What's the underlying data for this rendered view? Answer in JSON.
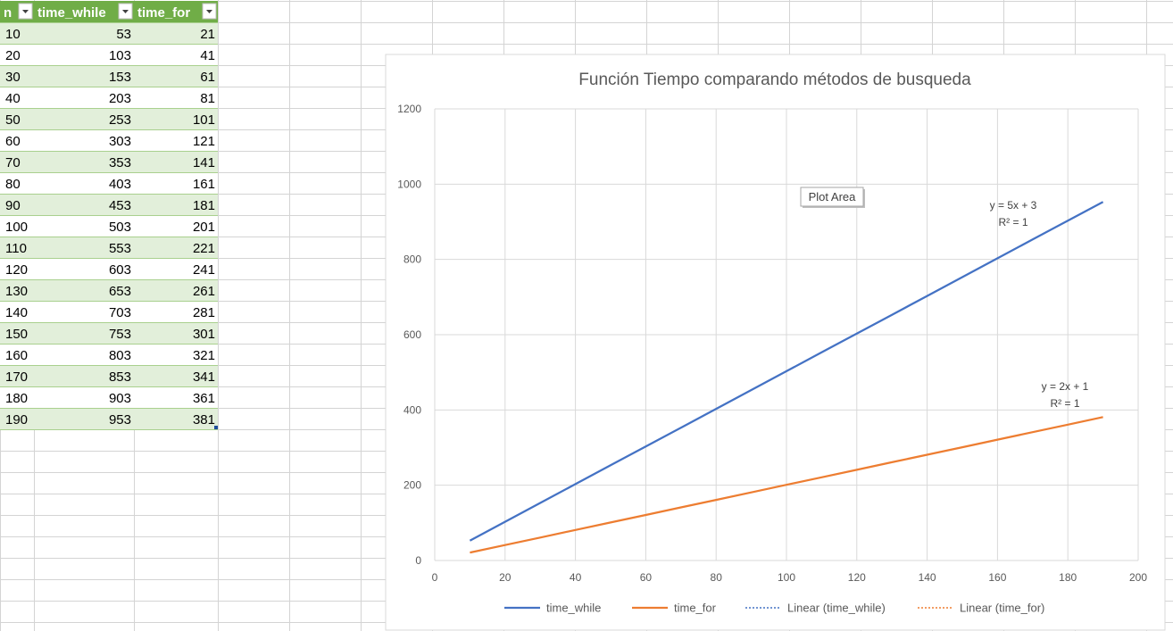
{
  "table": {
    "headers": [
      "n",
      "time_while",
      "time_for"
    ],
    "header_color": "#70ad47",
    "band_color": "#e2efda",
    "rows": [
      [
        10,
        53,
        21
      ],
      [
        20,
        103,
        41
      ],
      [
        30,
        153,
        61
      ],
      [
        40,
        203,
        81
      ],
      [
        50,
        253,
        101
      ],
      [
        60,
        303,
        121
      ],
      [
        70,
        353,
        141
      ],
      [
        80,
        403,
        161
      ],
      [
        90,
        453,
        181
      ],
      [
        100,
        503,
        201
      ],
      [
        110,
        553,
        221
      ],
      [
        120,
        603,
        241
      ],
      [
        130,
        653,
        261
      ],
      [
        140,
        703,
        281
      ],
      [
        150,
        753,
        301
      ],
      [
        160,
        803,
        321
      ],
      [
        170,
        853,
        341
      ],
      [
        180,
        903,
        361
      ],
      [
        190,
        953,
        381
      ]
    ]
  },
  "chart_data": {
    "type": "line",
    "title": "Función Tiempo comparando métodos de busqueda",
    "xlabel": "",
    "ylabel": "",
    "xlim": [
      0,
      200
    ],
    "ylim": [
      0,
      1200
    ],
    "x_ticks": [
      0,
      20,
      40,
      60,
      80,
      100,
      120,
      140,
      160,
      180,
      200
    ],
    "y_ticks": [
      0,
      200,
      400,
      600,
      800,
      1000,
      1200
    ],
    "grid": true,
    "legend_position": "bottom",
    "x": [
      10,
      20,
      30,
      40,
      50,
      60,
      70,
      80,
      90,
      100,
      110,
      120,
      130,
      140,
      150,
      160,
      170,
      180,
      190
    ],
    "series": [
      {
        "name": "time_while",
        "color": "#4472c4",
        "values": [
          53,
          103,
          153,
          203,
          253,
          303,
          353,
          403,
          453,
          503,
          553,
          603,
          653,
          703,
          753,
          803,
          853,
          903,
          953
        ]
      },
      {
        "name": "time_for",
        "color": "#ed7d31",
        "values": [
          21,
          41,
          61,
          81,
          101,
          121,
          141,
          161,
          181,
          201,
          221,
          241,
          261,
          281,
          301,
          321,
          341,
          361,
          381
        ]
      }
    ],
    "trendlines": [
      {
        "name": "Linear (time_while)",
        "color": "#4472c4",
        "equation": "y = 5x + 3",
        "r2": "R² = 1"
      },
      {
        "name": "Linear (time_for)",
        "color": "#ed7d31",
        "equation": "y = 2x + 1",
        "r2": "R² = 1"
      }
    ],
    "tooltip": "Plot Area"
  }
}
